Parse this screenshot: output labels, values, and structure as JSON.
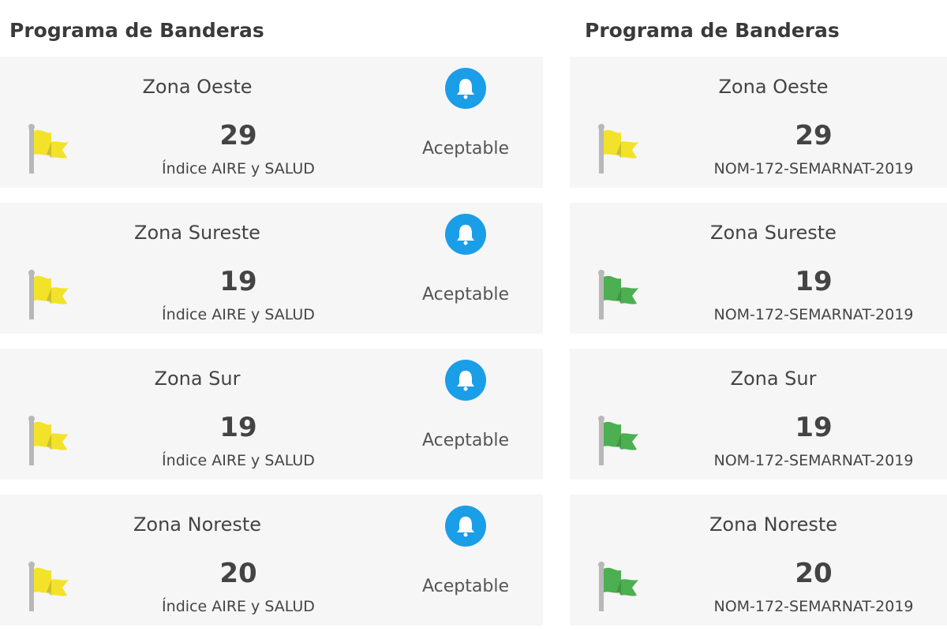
{
  "left": {
    "title": "Programa de Banderas",
    "subtitle": "Índice AIRE y SALUD",
    "cards": [
      {
        "zone": "Zona Oeste",
        "value": "29",
        "status": "Aceptable",
        "flag_color": "#f2e22a",
        "icon": "bell-icon"
      },
      {
        "zone": "Zona Sureste",
        "value": "19",
        "status": "Aceptable",
        "flag_color": "#f2e22a",
        "icon": "bell-icon"
      },
      {
        "zone": "Zona Sur",
        "value": "19",
        "status": "Aceptable",
        "flag_color": "#f2e22a",
        "icon": "bell-icon"
      },
      {
        "zone": "Zona Noreste",
        "value": "20",
        "status": "Aceptable",
        "flag_color": "#f2e22a",
        "icon": "bell-icon"
      }
    ]
  },
  "right": {
    "title": "Programa de Banderas",
    "subtitle": "NOM-172-SEMARNAT-2019",
    "cards": [
      {
        "zone": "Zona Oeste",
        "value": "29",
        "flag_color": "#f2e22a"
      },
      {
        "zone": "Zona Sureste",
        "value": "19",
        "flag_color": "#4caf50"
      },
      {
        "zone": "Zona Sur",
        "value": "19",
        "flag_color": "#4caf50"
      },
      {
        "zone": "Zona Noreste",
        "value": "20",
        "flag_color": "#4caf50"
      }
    ]
  },
  "colors": {
    "bell": "#1a9ee8",
    "card_bg": "#f6f6f6"
  }
}
